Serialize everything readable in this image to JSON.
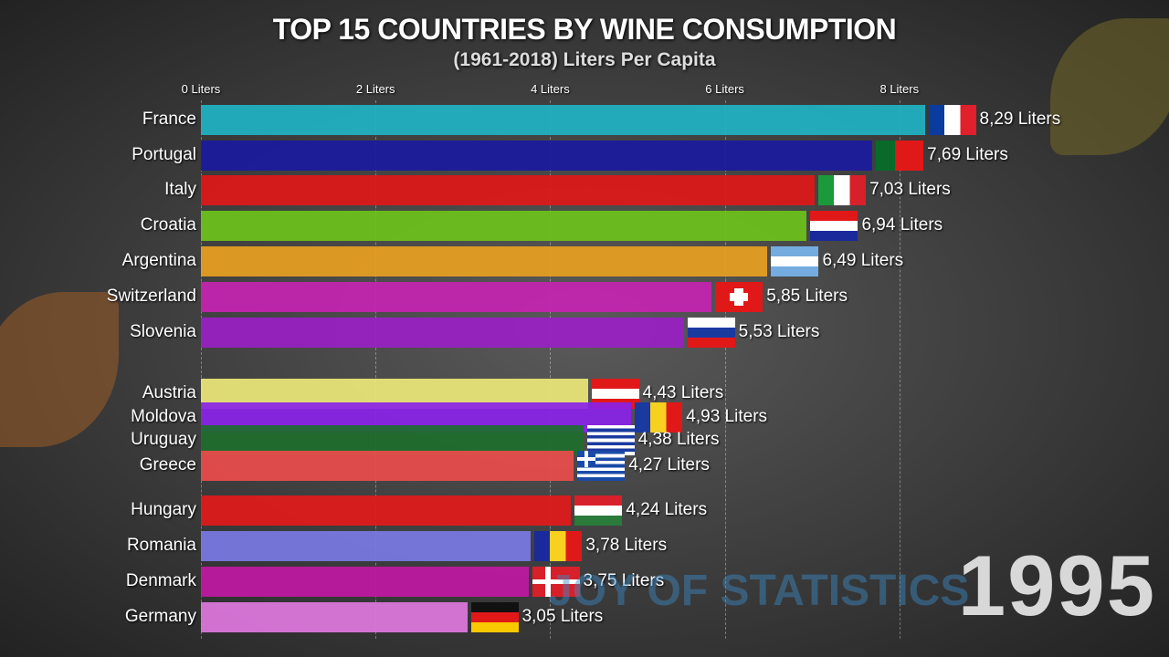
{
  "chart_data": {
    "type": "bar",
    "orientation": "horizontal",
    "title": "TOP 15 COUNTRIES BY WINE CONSUMPTION",
    "subtitle": "(1961-2018) Liters Per Capita",
    "xlabel": "Liters",
    "ylabel": "",
    "xlim": [
      0,
      8.3
    ],
    "ticks": [
      "0 Liters",
      "2 Liters",
      "4 Liters",
      "6 Liters",
      "8 Liters"
    ],
    "tick_values": [
      0,
      2,
      4,
      6,
      8
    ],
    "grid": true,
    "year": "1995",
    "watermark": "JOY OF STATISTICS",
    "categories": [
      "France",
      "Portugal",
      "Italy",
      "Croatia",
      "Argentina",
      "Switzerland",
      "Slovenia",
      "Austria",
      "Moldova",
      "Uruguay",
      "Greece",
      "Hungary",
      "Romania",
      "Denmark",
      "Germany"
    ],
    "values": [
      8.29,
      7.69,
      7.03,
      6.94,
      6.49,
      5.85,
      5.53,
      4.43,
      4.93,
      4.38,
      4.27,
      4.24,
      3.78,
      3.75,
      3.05
    ],
    "value_labels": [
      "8,29 Liters",
      "7,69 Liters",
      "7,03 Liters",
      "6,94 Liters",
      "6,49 Liters",
      "5,85 Liters",
      "5,53 Liters",
      "4,43 Liters",
      "4,93 Liters",
      "4,38 Liters",
      "4,27 Liters",
      "4,24 Liters",
      "3,78 Liters",
      "3,75 Liters",
      "3,05 Liters"
    ],
    "colors": [
      "#1fb3c4",
      "#1a1a9e",
      "#e01818",
      "#6cc21a",
      "#e8a020",
      "#c424b0",
      "#9a20c4",
      "#ece87a",
      "#8a22e8",
      "#1d6e2c",
      "#ec4c4c",
      "#e21a1a",
      "#7a7ae4",
      "#c018a4",
      "#e078e0"
    ]
  }
}
